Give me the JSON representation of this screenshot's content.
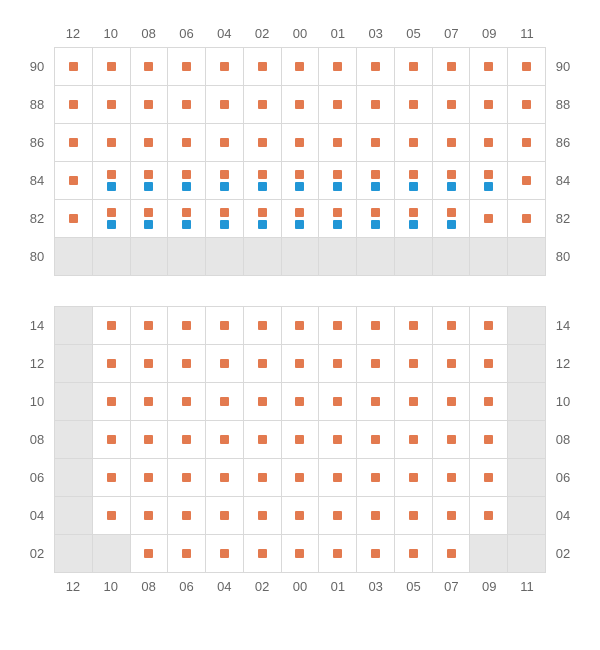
{
  "colors": {
    "orange": "#e37a4f",
    "blue": "#2196d6",
    "grid_border": "#d9d9d9",
    "grey_cell": "#e6e6e6",
    "label": "#666666",
    "background": "#ffffff"
  },
  "columns": [
    "12",
    "10",
    "08",
    "06",
    "04",
    "02",
    "00",
    "01",
    "03",
    "05",
    "07",
    "09",
    "11"
  ],
  "section_top": {
    "showColLabels": "top",
    "rows": [
      {
        "label": "90",
        "cells": [
          {
            "s": [
              "o"
            ]
          },
          {
            "s": [
              "o"
            ]
          },
          {
            "s": [
              "o"
            ]
          },
          {
            "s": [
              "o"
            ]
          },
          {
            "s": [
              "o"
            ]
          },
          {
            "s": [
              "o"
            ]
          },
          {
            "s": [
              "o"
            ]
          },
          {
            "s": [
              "o"
            ]
          },
          {
            "s": [
              "o"
            ]
          },
          {
            "s": [
              "o"
            ]
          },
          {
            "s": [
              "o"
            ]
          },
          {
            "s": [
              "o"
            ]
          },
          {
            "s": [
              "o"
            ]
          }
        ]
      },
      {
        "label": "88",
        "cells": [
          {
            "s": [
              "o"
            ]
          },
          {
            "s": [
              "o"
            ]
          },
          {
            "s": [
              "o"
            ]
          },
          {
            "s": [
              "o"
            ]
          },
          {
            "s": [
              "o"
            ]
          },
          {
            "s": [
              "o"
            ]
          },
          {
            "s": [
              "o"
            ]
          },
          {
            "s": [
              "o"
            ]
          },
          {
            "s": [
              "o"
            ]
          },
          {
            "s": [
              "o"
            ]
          },
          {
            "s": [
              "o"
            ]
          },
          {
            "s": [
              "o"
            ]
          },
          {
            "s": [
              "o"
            ]
          }
        ]
      },
      {
        "label": "86",
        "cells": [
          {
            "s": [
              "o"
            ]
          },
          {
            "s": [
              "o"
            ]
          },
          {
            "s": [
              "o"
            ]
          },
          {
            "s": [
              "o"
            ]
          },
          {
            "s": [
              "o"
            ]
          },
          {
            "s": [
              "o"
            ]
          },
          {
            "s": [
              "o"
            ]
          },
          {
            "s": [
              "o"
            ]
          },
          {
            "s": [
              "o"
            ]
          },
          {
            "s": [
              "o"
            ]
          },
          {
            "s": [
              "o"
            ]
          },
          {
            "s": [
              "o"
            ]
          },
          {
            "s": [
              "o"
            ]
          }
        ]
      },
      {
        "label": "84",
        "cells": [
          {
            "s": [
              "o"
            ]
          },
          {
            "s": [
              "o",
              "b"
            ]
          },
          {
            "s": [
              "o",
              "b"
            ]
          },
          {
            "s": [
              "o",
              "b"
            ]
          },
          {
            "s": [
              "o",
              "b"
            ]
          },
          {
            "s": [
              "o",
              "b"
            ]
          },
          {
            "s": [
              "o",
              "b"
            ]
          },
          {
            "s": [
              "o",
              "b"
            ]
          },
          {
            "s": [
              "o",
              "b"
            ]
          },
          {
            "s": [
              "o",
              "b"
            ]
          },
          {
            "s": [
              "o",
              "b"
            ]
          },
          {
            "s": [
              "o",
              "b"
            ]
          },
          {
            "s": [
              "o"
            ]
          }
        ]
      },
      {
        "label": "82",
        "cells": [
          {
            "s": [
              "o"
            ]
          },
          {
            "s": [
              "o",
              "b"
            ]
          },
          {
            "s": [
              "o",
              "b"
            ]
          },
          {
            "s": [
              "o",
              "b"
            ]
          },
          {
            "s": [
              "o",
              "b"
            ]
          },
          {
            "s": [
              "o",
              "b"
            ]
          },
          {
            "s": [
              "o",
              "b"
            ]
          },
          {
            "s": [
              "o",
              "b"
            ]
          },
          {
            "s": [
              "o",
              "b"
            ]
          },
          {
            "s": [
              "o",
              "b"
            ]
          },
          {
            "s": [
              "o",
              "b"
            ]
          },
          {
            "s": [
              "o"
            ]
          },
          {
            "s": [
              "o"
            ]
          }
        ]
      },
      {
        "label": "80",
        "cells": [
          {
            "s": [],
            "g": true
          },
          {
            "s": [],
            "g": true
          },
          {
            "s": [],
            "g": true
          },
          {
            "s": [],
            "g": true
          },
          {
            "s": [],
            "g": true
          },
          {
            "s": [],
            "g": true
          },
          {
            "s": [],
            "g": true
          },
          {
            "s": [],
            "g": true
          },
          {
            "s": [],
            "g": true
          },
          {
            "s": [],
            "g": true
          },
          {
            "s": [],
            "g": true
          },
          {
            "s": [],
            "g": true
          },
          {
            "s": [],
            "g": true
          }
        ]
      }
    ]
  },
  "section_bottom": {
    "showColLabels": "bottom",
    "rows": [
      {
        "label": "14",
        "cells": [
          {
            "s": [],
            "g": true
          },
          {
            "s": [
              "o"
            ]
          },
          {
            "s": [
              "o"
            ]
          },
          {
            "s": [
              "o"
            ]
          },
          {
            "s": [
              "o"
            ]
          },
          {
            "s": [
              "o"
            ]
          },
          {
            "s": [
              "o"
            ]
          },
          {
            "s": [
              "o"
            ]
          },
          {
            "s": [
              "o"
            ]
          },
          {
            "s": [
              "o"
            ]
          },
          {
            "s": [
              "o"
            ]
          },
          {
            "s": [
              "o"
            ]
          },
          {
            "s": [],
            "g": true
          }
        ]
      },
      {
        "label": "12",
        "cells": [
          {
            "s": [],
            "g": true
          },
          {
            "s": [
              "o"
            ]
          },
          {
            "s": [
              "o"
            ]
          },
          {
            "s": [
              "o"
            ]
          },
          {
            "s": [
              "o"
            ]
          },
          {
            "s": [
              "o"
            ]
          },
          {
            "s": [
              "o"
            ]
          },
          {
            "s": [
              "o"
            ]
          },
          {
            "s": [
              "o"
            ]
          },
          {
            "s": [
              "o"
            ]
          },
          {
            "s": [
              "o"
            ]
          },
          {
            "s": [
              "o"
            ]
          },
          {
            "s": [],
            "g": true
          }
        ]
      },
      {
        "label": "10",
        "cells": [
          {
            "s": [],
            "g": true
          },
          {
            "s": [
              "o"
            ]
          },
          {
            "s": [
              "o"
            ]
          },
          {
            "s": [
              "o"
            ]
          },
          {
            "s": [
              "o"
            ]
          },
          {
            "s": [
              "o"
            ]
          },
          {
            "s": [
              "o"
            ]
          },
          {
            "s": [
              "o"
            ]
          },
          {
            "s": [
              "o"
            ]
          },
          {
            "s": [
              "o"
            ]
          },
          {
            "s": [
              "o"
            ]
          },
          {
            "s": [
              "o"
            ]
          },
          {
            "s": [],
            "g": true
          }
        ]
      },
      {
        "label": "08",
        "cells": [
          {
            "s": [],
            "g": true
          },
          {
            "s": [
              "o"
            ]
          },
          {
            "s": [
              "o"
            ]
          },
          {
            "s": [
              "o"
            ]
          },
          {
            "s": [
              "o"
            ]
          },
          {
            "s": [
              "o"
            ]
          },
          {
            "s": [
              "o"
            ]
          },
          {
            "s": [
              "o"
            ]
          },
          {
            "s": [
              "o"
            ]
          },
          {
            "s": [
              "o"
            ]
          },
          {
            "s": [
              "o"
            ]
          },
          {
            "s": [
              "o"
            ]
          },
          {
            "s": [],
            "g": true
          }
        ]
      },
      {
        "label": "06",
        "cells": [
          {
            "s": [],
            "g": true
          },
          {
            "s": [
              "o"
            ]
          },
          {
            "s": [
              "o"
            ]
          },
          {
            "s": [
              "o"
            ]
          },
          {
            "s": [
              "o"
            ]
          },
          {
            "s": [
              "o"
            ]
          },
          {
            "s": [
              "o"
            ]
          },
          {
            "s": [
              "o"
            ]
          },
          {
            "s": [
              "o"
            ]
          },
          {
            "s": [
              "o"
            ]
          },
          {
            "s": [
              "o"
            ]
          },
          {
            "s": [
              "o"
            ]
          },
          {
            "s": [],
            "g": true
          }
        ]
      },
      {
        "label": "04",
        "cells": [
          {
            "s": [],
            "g": true
          },
          {
            "s": [
              "o"
            ]
          },
          {
            "s": [
              "o"
            ]
          },
          {
            "s": [
              "o"
            ]
          },
          {
            "s": [
              "o"
            ]
          },
          {
            "s": [
              "o"
            ]
          },
          {
            "s": [
              "o"
            ]
          },
          {
            "s": [
              "o"
            ]
          },
          {
            "s": [
              "o"
            ]
          },
          {
            "s": [
              "o"
            ]
          },
          {
            "s": [
              "o"
            ]
          },
          {
            "s": [
              "o"
            ]
          },
          {
            "s": [],
            "g": true
          }
        ]
      },
      {
        "label": "02",
        "cells": [
          {
            "s": [],
            "g": true
          },
          {
            "s": [],
            "g": true
          },
          {
            "s": [
              "o"
            ]
          },
          {
            "s": [
              "o"
            ]
          },
          {
            "s": [
              "o"
            ]
          },
          {
            "s": [
              "o"
            ]
          },
          {
            "s": [
              "o"
            ]
          },
          {
            "s": [
              "o"
            ]
          },
          {
            "s": [
              "o"
            ]
          },
          {
            "s": [
              "o"
            ]
          },
          {
            "s": [
              "o"
            ]
          },
          {
            "s": [],
            "g": true
          },
          {
            "s": [],
            "g": true
          }
        ]
      }
    ]
  }
}
